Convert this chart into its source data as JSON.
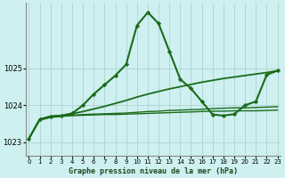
{
  "title": "Graphe pression niveau de la mer (hPa)",
  "bg_color": "#cef0f0",
  "grid_color": "#a8cccc",
  "line_color": "#1a6b1a",
  "xlim": [
    -0.3,
    23.3
  ],
  "ylim": [
    1022.65,
    1026.75
  ],
  "yticks": [
    1023,
    1024,
    1025
  ],
  "xticks": [
    0,
    1,
    2,
    3,
    4,
    5,
    6,
    7,
    8,
    9,
    10,
    11,
    12,
    13,
    14,
    15,
    16,
    17,
    18,
    19,
    20,
    21,
    22,
    23
  ],
  "lines": [
    {
      "x": [
        0,
        1,
        2,
        3,
        4,
        5,
        6,
        7,
        8,
        9,
        10,
        11,
        12,
        13,
        14,
        15,
        16,
        17,
        18,
        19,
        20,
        21,
        22,
        23
      ],
      "y": [
        1023.1,
        1023.6,
        1023.67,
        1023.7,
        1023.72,
        1023.73,
        1023.74,
        1023.75,
        1023.75,
        1023.76,
        1023.77,
        1023.78,
        1023.79,
        1023.8,
        1023.81,
        1023.82,
        1023.83,
        1023.84,
        1023.84,
        1023.85,
        1023.85,
        1023.85,
        1023.86,
        1023.87
      ],
      "marker": null,
      "lw": 1.0
    },
    {
      "x": [
        0,
        1,
        2,
        3,
        4,
        5,
        6,
        7,
        8,
        9,
        10,
        11,
        12,
        13,
        14,
        15,
        16,
        17,
        18,
        19,
        20,
        21,
        22,
        23
      ],
      "y": [
        1023.1,
        1023.6,
        1023.68,
        1023.71,
        1023.73,
        1023.75,
        1023.76,
        1023.77,
        1023.78,
        1023.79,
        1023.81,
        1023.83,
        1023.84,
        1023.86,
        1023.87,
        1023.88,
        1023.89,
        1023.91,
        1023.92,
        1023.93,
        1023.93,
        1023.94,
        1023.95,
        1023.96
      ],
      "marker": null,
      "lw": 1.0
    },
    {
      "x": [
        0,
        1,
        2,
        3,
        4,
        5,
        6,
        7,
        8,
        9,
        10,
        11,
        12,
        13,
        14,
        15,
        16,
        17,
        18,
        19,
        20,
        21,
        22,
        23
      ],
      "y": [
        1023.1,
        1023.62,
        1023.7,
        1023.72,
        1023.77,
        1023.83,
        1023.9,
        1023.97,
        1024.05,
        1024.13,
        1024.22,
        1024.3,
        1024.37,
        1024.44,
        1024.5,
        1024.56,
        1024.62,
        1024.67,
        1024.72,
        1024.76,
        1024.8,
        1024.84,
        1024.88,
        1024.93
      ],
      "marker": null,
      "lw": 1.3
    },
    {
      "x": [
        0,
        1,
        2,
        3,
        4,
        5,
        6,
        7,
        8,
        9,
        10,
        11,
        12,
        13,
        14,
        15,
        16,
        17,
        18,
        19,
        20,
        21,
        22,
        23
      ],
      "y": [
        1023.1,
        1023.62,
        1023.7,
        1023.72,
        1023.78,
        1024.0,
        1024.3,
        1024.55,
        1024.8,
        1025.1,
        1026.15,
        1026.5,
        1026.2,
        1025.45,
        1024.7,
        1024.45,
        1024.1,
        1023.75,
        1023.72,
        1023.76,
        1024.0,
        1024.1,
        1024.82,
        1024.93
      ],
      "marker": "D",
      "lw": 1.5
    }
  ]
}
